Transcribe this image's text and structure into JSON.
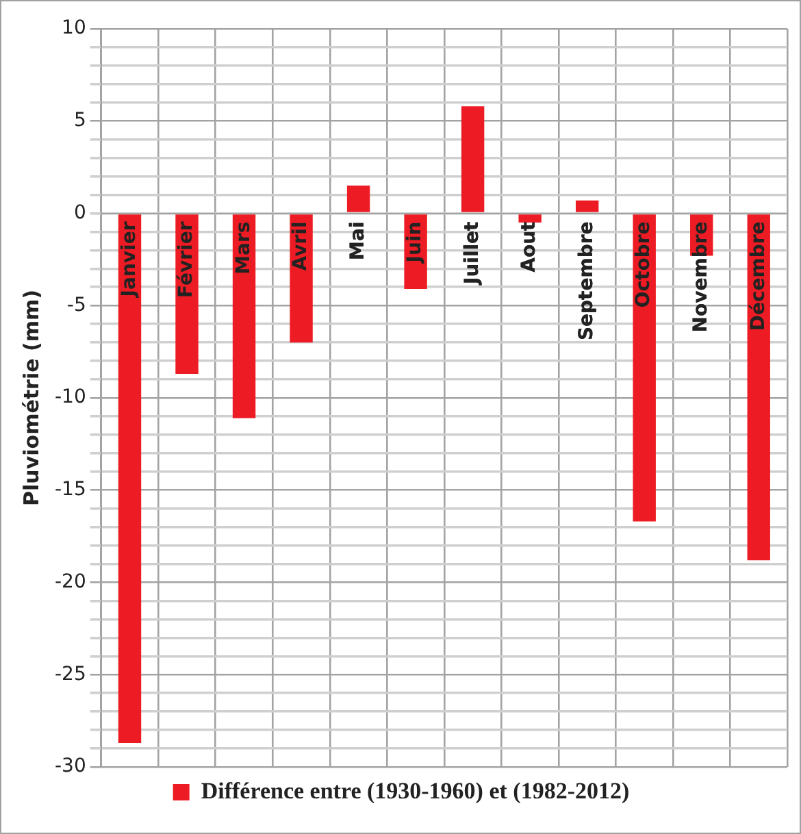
{
  "chart_data": {
    "type": "bar",
    "ylabel": "Pluviométrie (mm)",
    "categories": [
      "Janvier",
      "Février",
      "Mars",
      "Avril",
      "Mai",
      "Juin",
      "Juillet",
      "Aout",
      "Septembre",
      "Octobre",
      "Novembre",
      "Décembre"
    ],
    "series": [
      {
        "name": "Différence entre (1930-1960) et (1982-2012)",
        "color": "#ed1c24",
        "values": [
          -28.7,
          -8.7,
          -11.1,
          -7.0,
          1.5,
          -4.1,
          5.8,
          -0.5,
          0.7,
          -16.7,
          -2.3,
          -18.8
        ]
      }
    ],
    "ylim": [
      -30,
      10
    ],
    "yticks": [
      -30,
      {
        "value": -29,
        "label": null
      },
      {
        "value": -28,
        "label": null
      },
      {
        "value": -27,
        "label": null
      },
      {
        "value": -26,
        "label": null
      },
      -25,
      {
        "value": -24,
        "label": null
      },
      {
        "value": -23,
        "label": null
      },
      {
        "value": -22,
        "label": null
      },
      {
        "value": -21,
        "label": null
      },
      -20,
      {
        "value": -19,
        "label": null
      },
      {
        "value": -18,
        "label": null
      },
      {
        "value": -17,
        "label": null
      },
      {
        "value": -16,
        "label": null
      },
      -15,
      {
        "value": -14,
        "label": null
      },
      {
        "value": -13,
        "label": null
      },
      {
        "value": -12,
        "label": null
      },
      {
        "value": -11,
        "label": null
      },
      -10,
      {
        "value": -9,
        "label": null
      },
      {
        "value": -8,
        "label": null
      },
      {
        "value": -7,
        "label": null
      },
      {
        "value": -6,
        "label": null
      },
      -5,
      {
        "value": -4,
        "label": null
      },
      {
        "value": -3,
        "label": null
      },
      {
        "value": -2,
        "label": null
      },
      {
        "value": -1,
        "label": null
      },
      0,
      {
        "value": 1,
        "label": null
      },
      {
        "value": 2,
        "label": null
      },
      {
        "value": 3,
        "label": null
      },
      {
        "value": 4,
        "label": null
      },
      5,
      {
        "value": 6,
        "label": null
      },
      {
        "value": 7,
        "label": null
      },
      {
        "value": 8,
        "label": null
      },
      {
        "value": 9,
        "label": null
      },
      10
    ],
    "grid": true,
    "legend": "bottom"
  }
}
